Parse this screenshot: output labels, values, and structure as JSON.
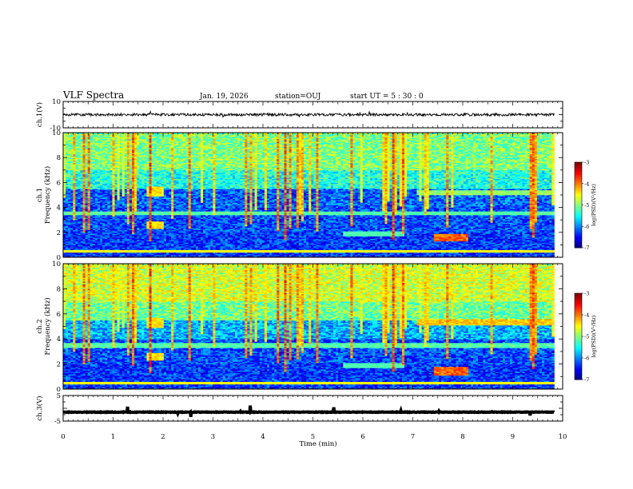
{
  "header": {
    "title": "VLF Spectra",
    "date": "Jan. 19, 2026",
    "station": "station=OUJ",
    "start_ut": "start  UT =  5 : 30 : 0"
  },
  "chart_data": {
    "type": "heatmap",
    "x": {
      "label": "Time  (min)",
      "range": [
        0,
        10
      ],
      "ticks": [
        "0",
        "1",
        "2",
        "3",
        "4",
        "5",
        "6",
        "7",
        "8",
        "9",
        "10"
      ],
      "data_end": 9.83
    },
    "panels": [
      {
        "id": "ch1_waveform",
        "type": "line",
        "ylabel": "ch.1(V)",
        "ylim": [
          -10,
          10
        ],
        "yticks": [
          "10",
          "-10"
        ],
        "baseline": 0,
        "amplitude": 1.0
      },
      {
        "id": "ch1_spectrogram",
        "type": "heatmap",
        "ylabel_line1": "ch.1",
        "ylabel_line2": "Frequency  (kHz)",
        "ylim": [
          0,
          10
        ],
        "yticks": [
          "0",
          "2",
          "4",
          "6",
          "8",
          "10"
        ],
        "colorbar": {
          "label": "log(PSD)(V²/Hz)",
          "range": [
            -7,
            -3
          ],
          "ticks": [
            "-3",
            "-4",
            "-5",
            "-6",
            "-7"
          ]
        },
        "features": {
          "band_kHz": [
            3.4,
            3.7
          ],
          "after_7min_band_kHz": [
            5.0,
            5.4
          ],
          "emission_7_5_8_min_kHz": 1.6
        }
      },
      {
        "id": "ch2_spectrogram",
        "type": "heatmap",
        "ylabel_line1": "ch.2",
        "ylabel_line2": "Frequency  (kHz)",
        "ylim": [
          0,
          10
        ],
        "yticks": [
          "0",
          "2",
          "4",
          "6",
          "8",
          "10"
        ],
        "colorbar": {
          "label": "log(PSD)(V²/Hz)",
          "range": [
            -7,
            -3
          ],
          "ticks": [
            "-3",
            "-4",
            "-5",
            "-6",
            "-7"
          ]
        },
        "features": {
          "band_kHz": [
            3.3,
            3.7
          ],
          "after_7min_band_kHz": [
            5.1,
            5.6
          ],
          "emission_7_5_8_min_kHz": 1.5
        }
      },
      {
        "id": "ch3_waveform",
        "type": "line",
        "ylabel": "ch.3(V)",
        "ylim": [
          -5,
          5
        ],
        "yticks": [
          "5",
          "-5"
        ],
        "baseline": -1.5,
        "amplitude": 0.1
      }
    ],
    "colormap": [
      "#00007f",
      "#0000ff",
      "#007fff",
      "#00ffff",
      "#7fff7f",
      "#ffff00",
      "#ff7f00",
      "#ff0000",
      "#7f0000"
    ]
  }
}
